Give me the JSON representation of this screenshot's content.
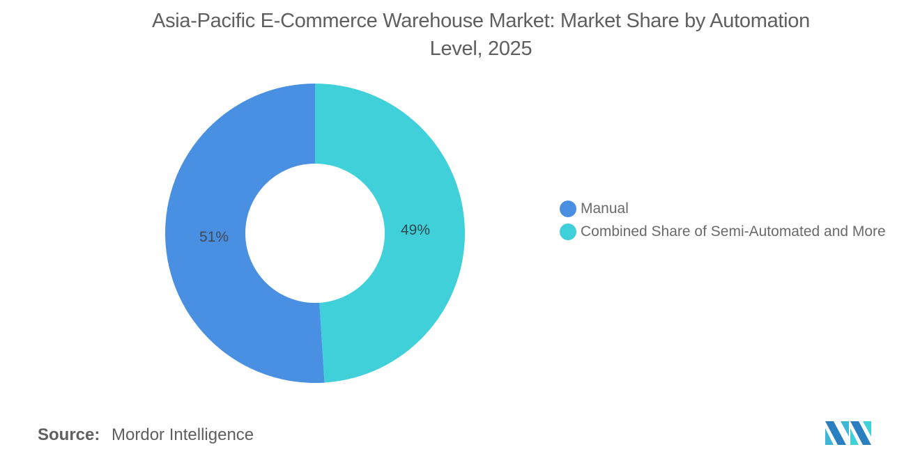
{
  "chart_data": {
    "type": "pie",
    "variant": "donut",
    "title": "Asia-Pacific E-Commerce Warehouse Market: Market Share by Automation Level, 2025",
    "categories": [
      "Manual",
      "Combined Share of Semi-Automated and More"
    ],
    "values": [
      51,
      49
    ],
    "unit": "%",
    "data_labels": [
      "51%",
      "49%"
    ],
    "colors": [
      "#4a90e2",
      "#40d0da"
    ],
    "legend_position": "right"
  },
  "header": {
    "title_line1": "Asia-Pacific E-Commerce Warehouse Market: Market Share by Automation",
    "title_line2": "Level, 2025"
  },
  "legend": {
    "items": [
      {
        "label": "Manual",
        "color": "#4a90e2"
      },
      {
        "label": "Combined Share of Semi-Automated and More",
        "color": "#40d0da"
      }
    ]
  },
  "labels": {
    "manual": "51%",
    "combined": "49%"
  },
  "footer": {
    "source_key": "Source:",
    "source_value": "Mordor Intelligence",
    "logo": "mordor-intelligence-logo"
  }
}
